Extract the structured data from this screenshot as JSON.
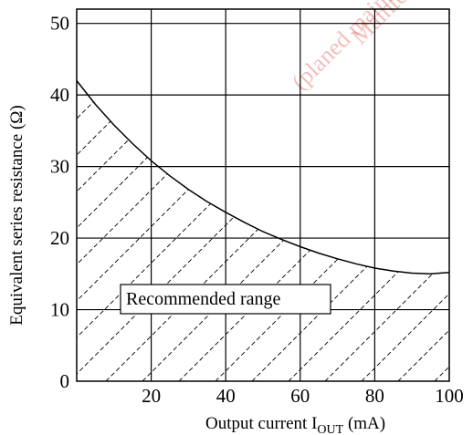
{
  "chart_data": {
    "type": "line",
    "xlabel": "Output current I",
    "xlabel_sub": "OUT",
    "xlabel_unit": " (mA)",
    "ylabel": "Equivalent series resistance (Ω)",
    "xlim": [
      0,
      100
    ],
    "ylim": [
      0,
      52
    ],
    "x_ticks": [
      20,
      40,
      60,
      80,
      100
    ],
    "y_ticks": [
      0,
      10,
      20,
      30,
      40,
      50
    ],
    "grid": true,
    "series": [
      {
        "x": [
          0,
          5,
          10,
          15,
          20,
          25,
          30,
          35,
          40,
          45,
          50,
          55,
          60,
          65,
          70,
          75,
          80,
          85,
          90,
          95,
          100
        ],
        "y": [
          42,
          38.7,
          35.8,
          33.2,
          30.8,
          28.7,
          26.8,
          25.1,
          23.6,
          22.2,
          20.9,
          19.8,
          18.8,
          17.9,
          17.1,
          16.4,
          15.8,
          15.4,
          15.1,
          15.0,
          15.2
        ]
      }
    ],
    "region_label": "Recommended range",
    "region": "below-curve hatched"
  },
  "watermark": [
    "Maintenance",
    "(planed maintenance"
  ]
}
